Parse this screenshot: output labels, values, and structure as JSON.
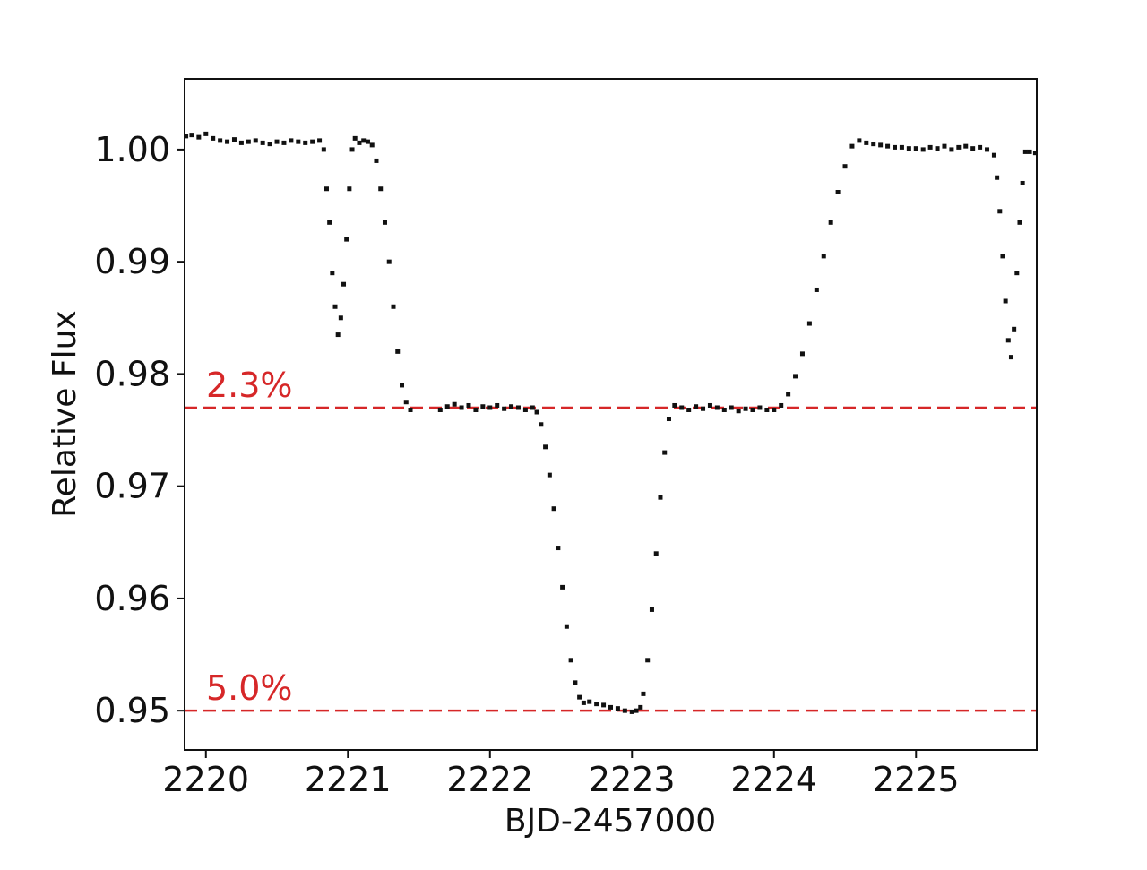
{
  "chart_data": {
    "type": "scatter",
    "title": "",
    "xlabel": "BJD-2457000",
    "ylabel": "Relative Flux",
    "xlim": [
      2219.85,
      2225.85
    ],
    "ylim": [
      0.9465,
      1.0063
    ],
    "grid": false,
    "legend": "none",
    "xticks": [
      {
        "value": 2220,
        "label": "2220"
      },
      {
        "value": 2221,
        "label": "2221"
      },
      {
        "value": 2222,
        "label": "2222"
      },
      {
        "value": 2223,
        "label": "2223"
      },
      {
        "value": 2224,
        "label": "2224"
      },
      {
        "value": 2225,
        "label": "2225"
      }
    ],
    "yticks": [
      {
        "value": 1.0,
        "label": "1.00"
      },
      {
        "value": 0.99,
        "label": "0.99"
      },
      {
        "value": 0.98,
        "label": "0.98"
      },
      {
        "value": 0.97,
        "label": "0.97"
      },
      {
        "value": 0.96,
        "label": "0.96"
      },
      {
        "value": 0.95,
        "label": "0.95"
      }
    ],
    "hlines": [
      {
        "y": 0.977,
        "label": "2.3%",
        "color": "#d62728",
        "style": "dashed"
      },
      {
        "y": 0.95,
        "label": "5.0%",
        "color": "#d62728",
        "style": "dashed"
      }
    ],
    "series": [
      {
        "marker_color": "#111111",
        "points": [
          [
            2219.86,
            1.0012
          ],
          [
            2219.9,
            1.0013
          ],
          [
            2219.95,
            1.0011
          ],
          [
            2220.0,
            1.0014
          ],
          [
            2220.05,
            1.001
          ],
          [
            2220.1,
            1.0008
          ],
          [
            2220.15,
            1.0007
          ],
          [
            2220.2,
            1.0009
          ],
          [
            2220.25,
            1.0006
          ],
          [
            2220.3,
            1.0007
          ],
          [
            2220.35,
            1.0008
          ],
          [
            2220.4,
            1.0006
          ],
          [
            2220.45,
            1.0005
          ],
          [
            2220.5,
            1.0007
          ],
          [
            2220.55,
            1.0006
          ],
          [
            2220.6,
            1.0008
          ],
          [
            2220.65,
            1.0007
          ],
          [
            2220.7,
            1.0006
          ],
          [
            2220.75,
            1.0007
          ],
          [
            2220.8,
            1.0008
          ],
          [
            2220.83,
            1.0
          ],
          [
            2220.85,
            0.9965
          ],
          [
            2220.87,
            0.9935
          ],
          [
            2220.89,
            0.989
          ],
          [
            2220.91,
            0.986
          ],
          [
            2220.93,
            0.9835
          ],
          [
            2220.95,
            0.985
          ],
          [
            2220.97,
            0.988
          ],
          [
            2220.99,
            0.992
          ],
          [
            2221.01,
            0.9965
          ],
          [
            2221.03,
            1.0
          ],
          [
            2221.05,
            1.001
          ],
          [
            2221.08,
            1.0006
          ],
          [
            2221.11,
            1.0008
          ],
          [
            2221.14,
            1.0007
          ],
          [
            2221.17,
            1.0004
          ],
          [
            2221.2,
            0.999
          ],
          [
            2221.23,
            0.9965
          ],
          [
            2221.26,
            0.9935
          ],
          [
            2221.29,
            0.99
          ],
          [
            2221.32,
            0.986
          ],
          [
            2221.35,
            0.982
          ],
          [
            2221.38,
            0.979
          ],
          [
            2221.41,
            0.9775
          ],
          [
            2221.44,
            0.9768
          ],
          [
            2221.65,
            0.9768
          ],
          [
            2221.7,
            0.9771
          ],
          [
            2221.75,
            0.9773
          ],
          [
            2221.8,
            0.977
          ],
          [
            2221.85,
            0.9772
          ],
          [
            2221.9,
            0.9768
          ],
          [
            2221.95,
            0.9771
          ],
          [
            2222.0,
            0.977
          ],
          [
            2222.05,
            0.9772
          ],
          [
            2222.1,
            0.9769
          ],
          [
            2222.15,
            0.9771
          ],
          [
            2222.2,
            0.977
          ],
          [
            2222.25,
            0.9768
          ],
          [
            2222.3,
            0.977
          ],
          [
            2222.33,
            0.9766
          ],
          [
            2222.36,
            0.9755
          ],
          [
            2222.39,
            0.9735
          ],
          [
            2222.42,
            0.971
          ],
          [
            2222.45,
            0.968
          ],
          [
            2222.48,
            0.9645
          ],
          [
            2222.51,
            0.961
          ],
          [
            2222.54,
            0.9575
          ],
          [
            2222.57,
            0.9545
          ],
          [
            2222.6,
            0.9525
          ],
          [
            2222.63,
            0.9512
          ],
          [
            2222.66,
            0.9507
          ],
          [
            2222.7,
            0.9508
          ],
          [
            2222.75,
            0.9506
          ],
          [
            2222.8,
            0.9505
          ],
          [
            2222.85,
            0.9503
          ],
          [
            2222.9,
            0.9502
          ],
          [
            2222.95,
            0.95
          ],
          [
            2223.0,
            0.9499
          ],
          [
            2223.03,
            0.95
          ],
          [
            2223.06,
            0.9503
          ],
          [
            2223.08,
            0.9515
          ],
          [
            2223.11,
            0.9545
          ],
          [
            2223.14,
            0.959
          ],
          [
            2223.17,
            0.964
          ],
          [
            2223.2,
            0.969
          ],
          [
            2223.23,
            0.973
          ],
          [
            2223.26,
            0.976
          ],
          [
            2223.3,
            0.9772
          ],
          [
            2223.35,
            0.977
          ],
          [
            2223.4,
            0.9768
          ],
          [
            2223.45,
            0.9771
          ],
          [
            2223.5,
            0.9769
          ],
          [
            2223.55,
            0.9772
          ],
          [
            2223.6,
            0.977
          ],
          [
            2223.65,
            0.9768
          ],
          [
            2223.7,
            0.977
          ],
          [
            2223.75,
            0.9767
          ],
          [
            2223.8,
            0.9769
          ],
          [
            2223.85,
            0.9768
          ],
          [
            2223.9,
            0.977
          ],
          [
            2223.95,
            0.9768
          ],
          [
            2224.0,
            0.9768
          ],
          [
            2224.05,
            0.9772
          ],
          [
            2224.1,
            0.9782
          ],
          [
            2224.15,
            0.9798
          ],
          [
            2224.2,
            0.9818
          ],
          [
            2224.25,
            0.9845
          ],
          [
            2224.3,
            0.9875
          ],
          [
            2224.35,
            0.9905
          ],
          [
            2224.4,
            0.9935
          ],
          [
            2224.45,
            0.9962
          ],
          [
            2224.5,
            0.9985
          ],
          [
            2224.55,
            1.0003
          ],
          [
            2224.6,
            1.0008
          ],
          [
            2224.65,
            1.0006
          ],
          [
            2224.7,
            1.0005
          ],
          [
            2224.75,
            1.0004
          ],
          [
            2224.8,
            1.0003
          ],
          [
            2224.85,
            1.0002
          ],
          [
            2224.9,
            1.0002
          ],
          [
            2224.95,
            1.0001
          ],
          [
            2225.0,
            1.0001
          ],
          [
            2225.05,
            1.0
          ],
          [
            2225.1,
            1.0002
          ],
          [
            2225.15,
            1.0001
          ],
          [
            2225.2,
            1.0003
          ],
          [
            2225.25,
            1.0
          ],
          [
            2225.3,
            1.0002
          ],
          [
            2225.35,
            1.0003
          ],
          [
            2225.4,
            1.0001
          ],
          [
            2225.45,
            1.0002
          ],
          [
            2225.5,
            1.0
          ],
          [
            2225.55,
            0.9995
          ],
          [
            2225.57,
            0.9975
          ],
          [
            2225.59,
            0.9945
          ],
          [
            2225.61,
            0.9905
          ],
          [
            2225.63,
            0.9865
          ],
          [
            2225.65,
            0.983
          ],
          [
            2225.67,
            0.9815
          ],
          [
            2225.69,
            0.984
          ],
          [
            2225.71,
            0.989
          ],
          [
            2225.73,
            0.9935
          ],
          [
            2225.75,
            0.997
          ],
          [
            2225.77,
            0.9998
          ],
          [
            2225.8,
            0.9998
          ],
          [
            2225.84,
            0.9997
          ]
        ]
      }
    ]
  }
}
